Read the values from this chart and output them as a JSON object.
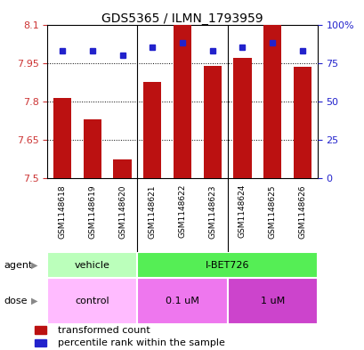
{
  "title": "GDS5365 / ILMN_1793959",
  "samples": [
    "GSM1148618",
    "GSM1148619",
    "GSM1148620",
    "GSM1148621",
    "GSM1148622",
    "GSM1148623",
    "GSM1148624",
    "GSM1148625",
    "GSM1148626"
  ],
  "transformed_counts": [
    7.815,
    7.73,
    7.575,
    7.875,
    8.1,
    7.94,
    7.97,
    8.1,
    7.935
  ],
  "percentile_ranks": [
    83,
    83,
    80,
    85,
    88,
    83,
    85,
    88,
    83
  ],
  "ylim_left": [
    7.5,
    8.1
  ],
  "ylim_right": [
    0,
    100
  ],
  "yticks_left": [
    7.5,
    7.65,
    7.8,
    7.95,
    8.1
  ],
  "yticks_right": [
    0,
    25,
    50,
    75,
    100
  ],
  "yticklabels_right": [
    "0",
    "25",
    "50",
    "75",
    "100%"
  ],
  "bar_color": "#bb1111",
  "dot_color": "#2222cc",
  "bar_width": 0.6,
  "agent_groups": [
    {
      "label": "vehicle",
      "start": 0,
      "end": 3,
      "color": "#bbffbb"
    },
    {
      "label": "I-BET726",
      "start": 3,
      "end": 9,
      "color": "#55ee55"
    }
  ],
  "dose_groups": [
    {
      "label": "control",
      "start": 0,
      "end": 3,
      "color": "#ffbbff"
    },
    {
      "label": "0.1 uM",
      "start": 3,
      "end": 6,
      "color": "#ee77ee"
    },
    {
      "label": "1 uM",
      "start": 6,
      "end": 9,
      "color": "#cc44cc"
    }
  ],
  "legend_red_label": "transformed count",
  "legend_blue_label": "percentile rank within the sample",
  "xtick_bg": "#cccccc",
  "title_fontsize": 10,
  "tick_fontsize": 8,
  "label_fontsize": 8,
  "bar_sep_color": "#888888",
  "grid_color": "#000000"
}
